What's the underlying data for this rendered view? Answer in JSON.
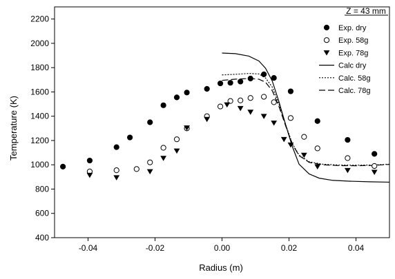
{
  "chart_data": {
    "type": "scatter",
    "title": "",
    "annotation": "Z = 43 mm",
    "xlabel": "Radius (m)",
    "ylabel": "Temperature (K)",
    "xlim": [
      -0.05,
      0.05
    ],
    "ylim": [
      400,
      2300
    ],
    "x_ticks": [
      -0.04,
      -0.02,
      0.0,
      0.02,
      0.04
    ],
    "x_tick_labels": [
      "-0.04",
      "-0.02",
      "0.00",
      "0.02",
      "0.04"
    ],
    "y_ticks": [
      400,
      600,
      800,
      1000,
      1200,
      1400,
      1600,
      1800,
      2000,
      2200
    ],
    "y_tick_labels": [
      "400",
      "600",
      "800",
      "1000",
      "1200",
      "1400",
      "1600",
      "1800",
      "2000",
      "2200"
    ],
    "grid": false,
    "legend_position": "top-right",
    "series": [
      {
        "name": "Exp. dry",
        "kind": "marker",
        "marker": "filled-circle",
        "x": [
          -0.0475,
          -0.0395,
          -0.0315,
          -0.0275,
          -0.0215,
          -0.0175,
          -0.0135,
          -0.0105,
          -0.0045,
          -0.0005,
          0.0025,
          0.0055,
          0.0085,
          0.0125,
          0.0155,
          0.0205,
          0.0285,
          0.0375,
          0.0455
        ],
        "y": [
          985,
          1035,
          1145,
          1225,
          1350,
          1490,
          1555,
          1595,
          1625,
          1670,
          1675,
          1685,
          1710,
          1745,
          1715,
          1605,
          1360,
          1205,
          1090
        ]
      },
      {
        "name": "Exp. 58g",
        "kind": "marker",
        "marker": "open-circle",
        "x": [
          -0.0395,
          -0.0315,
          -0.0255,
          -0.0215,
          -0.0175,
          -0.0135,
          -0.0105,
          -0.0045,
          -0.0005,
          0.0025,
          0.0055,
          0.0085,
          0.0125,
          0.0155,
          0.0205,
          0.0245,
          0.0285,
          0.0375,
          0.0455
        ],
        "y": [
          945,
          955,
          965,
          1020,
          1140,
          1210,
          1300,
          1400,
          1480,
          1525,
          1530,
          1550,
          1560,
          1515,
          1385,
          1230,
          1135,
          1055,
          990
        ]
      },
      {
        "name": "Exp. 78g",
        "kind": "marker",
        "marker": "filled-triangle-down",
        "x": [
          -0.0395,
          -0.0315,
          -0.0215,
          -0.0175,
          -0.0135,
          -0.0105,
          -0.0045,
          0.0015,
          0.0055,
          0.0085,
          0.0125,
          0.0155,
          0.0185,
          0.0205,
          0.0245,
          0.0285,
          0.0375,
          0.0455
        ],
        "y": [
          915,
          895,
          945,
          1055,
          1115,
          1305,
          1375,
          1495,
          1465,
          1435,
          1400,
          1345,
          1210,
          1165,
          1080,
          985,
          955,
          940
        ]
      },
      {
        "name": "Calc dry",
        "kind": "line",
        "dash": "solid",
        "x": [
          0.0,
          0.004,
          0.008,
          0.011,
          0.013,
          0.015,
          0.017,
          0.019,
          0.021,
          0.023,
          0.026,
          0.029,
          0.033,
          0.038,
          0.044,
          0.05
        ],
        "y": [
          1920,
          1915,
          1895,
          1855,
          1795,
          1690,
          1520,
          1330,
          1150,
          1005,
          925,
          890,
          872,
          865,
          860,
          857
        ]
      },
      {
        "name": "Calc. 58g",
        "kind": "line",
        "dash": "dotted",
        "x": [
          0.0,
          0.004,
          0.008,
          0.011,
          0.013,
          0.015,
          0.017,
          0.019,
          0.021,
          0.023,
          0.026,
          0.03,
          0.035,
          0.04,
          0.045,
          0.05
        ],
        "y": [
          1740,
          1745,
          1752,
          1748,
          1715,
          1640,
          1500,
          1330,
          1175,
          1080,
          1025,
          1005,
          998,
          997,
          998,
          1005
        ]
      },
      {
        "name": "Calc. 78g",
        "kind": "line",
        "dash": "dashed",
        "x": [
          0.0,
          0.004,
          0.008,
          0.011,
          0.013,
          0.015,
          0.017,
          0.019,
          0.021,
          0.023,
          0.026,
          0.03,
          0.035,
          0.04,
          0.045,
          0.05
        ],
        "y": [
          1695,
          1705,
          1710,
          1705,
          1680,
          1610,
          1480,
          1320,
          1170,
          1075,
          1020,
          1000,
          993,
          992,
          995,
          1003
        ]
      }
    ]
  }
}
